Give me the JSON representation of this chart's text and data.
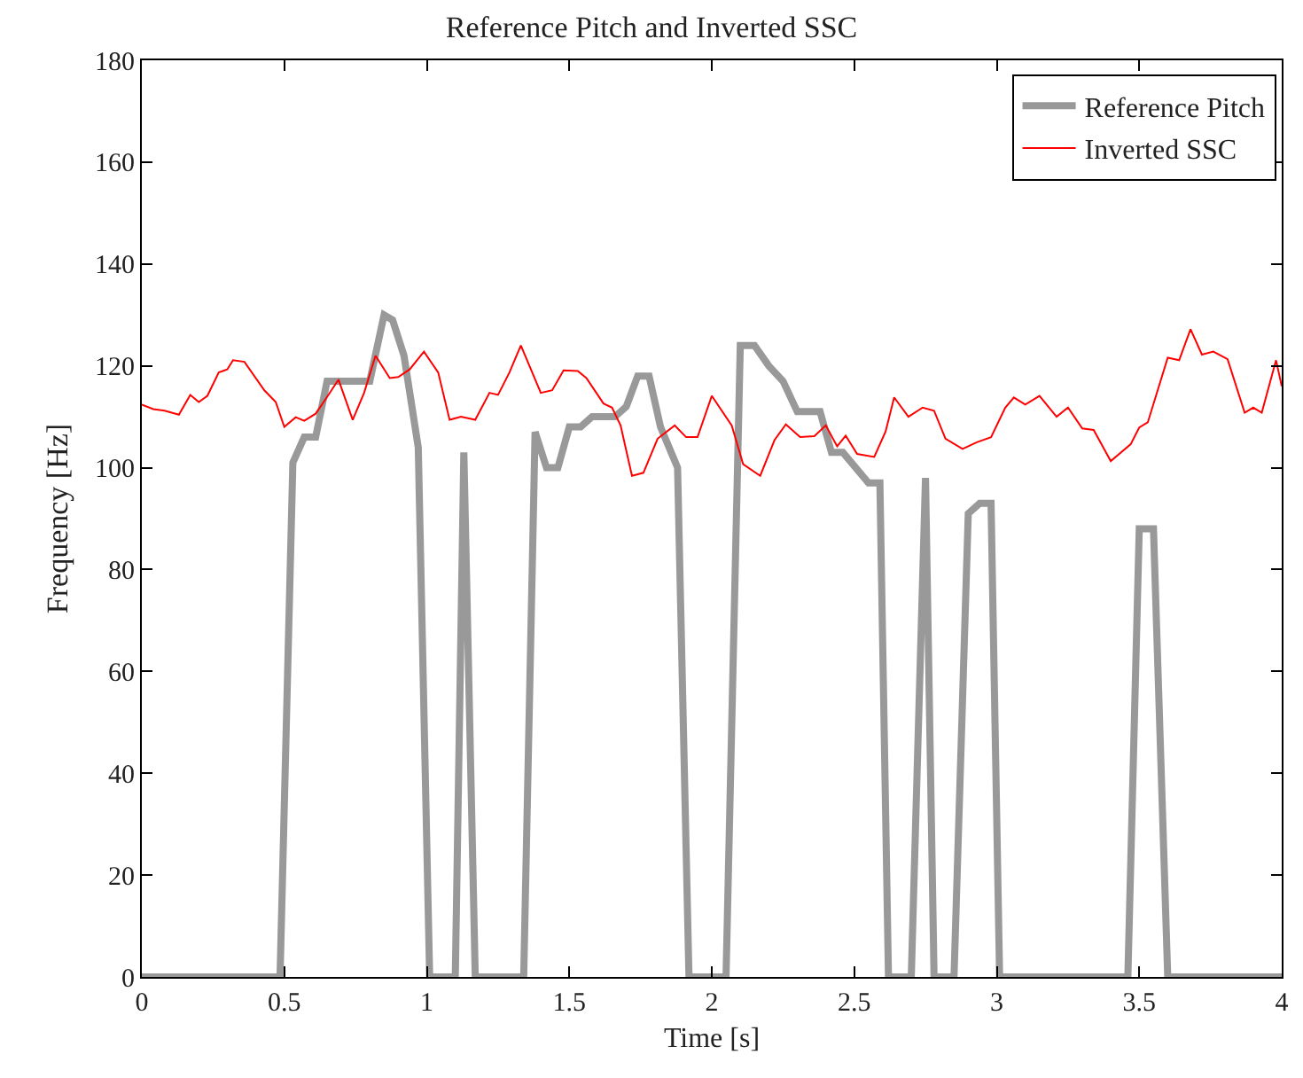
{
  "chart_data": {
    "type": "line",
    "title": "Reference Pitch and Inverted SSC",
    "xlabel": "Time [s]",
    "ylabel": "Frequency [Hz]",
    "xlim": [
      0,
      4
    ],
    "xticks": [
      0,
      0.5,
      1,
      1.5,
      2,
      2.5,
      3,
      3.5,
      4
    ],
    "ylim": [
      0,
      180
    ],
    "yticks": [
      0,
      20,
      40,
      60,
      80,
      100,
      120,
      140,
      160,
      180
    ],
    "grid": false,
    "legend": "top right",
    "marker": "none",
    "line_style": "solid",
    "series": [
      {
        "name": "Reference Pitch",
        "color": "#999999",
        "x": [
          0,
          0.485,
          0.53,
          0.57,
          0.61,
          0.65,
          0.8,
          0.85,
          0.88,
          0.92,
          0.97,
          1.01,
          1.1,
          1.13,
          1.17,
          1.34,
          1.38,
          1.42,
          1.46,
          1.5,
          1.54,
          1.58,
          1.66,
          1.7,
          1.74,
          1.78,
          1.82,
          1.88,
          1.92,
          2.05,
          2.1,
          2.15,
          2.2,
          2.25,
          2.3,
          2.38,
          2.42,
          2.46,
          2.55,
          2.59,
          2.62,
          2.7,
          2.75,
          2.78,
          2.85,
          2.9,
          2.94,
          2.98,
          3.01,
          3.46,
          3.5,
          3.55,
          3.6,
          4
        ],
        "values": [
          0,
          0,
          101,
          106,
          106,
          117,
          117,
          130,
          129,
          122,
          104,
          0,
          0,
          103,
          0,
          0,
          107,
          100,
          100,
          108,
          108,
          110,
          110,
          112,
          118,
          118,
          108,
          100,
          0,
          0,
          124,
          124,
          120,
          117,
          111,
          111,
          103,
          103,
          97,
          97,
          0,
          0,
          98,
          0,
          0,
          91,
          93,
          93,
          0,
          0,
          88,
          88,
          0,
          0
        ]
      },
      {
        "name": "Inverted SSC",
        "color": "#ff0000",
        "x": [
          0,
          0.04,
          0.08,
          0.13,
          0.17,
          0.2,
          0.23,
          0.27,
          0.3,
          0.32,
          0.36,
          0.43,
          0.47,
          0.5,
          0.54,
          0.57,
          0.61,
          0.65,
          0.69,
          0.74,
          0.78,
          0.82,
          0.87,
          0.9,
          0.94,
          0.99,
          1.04,
          1.08,
          1.12,
          1.17,
          1.22,
          1.25,
          1.29,
          1.33,
          1.4,
          1.44,
          1.48,
          1.53,
          1.56,
          1.62,
          1.65,
          1.68,
          1.72,
          1.76,
          1.81,
          1.87,
          1.91,
          1.95,
          2,
          2.07,
          2.11,
          2.17,
          2.22,
          2.26,
          2.31,
          2.36,
          2.4,
          2.44,
          2.47,
          2.51,
          2.57,
          2.61,
          2.64,
          2.69,
          2.74,
          2.78,
          2.82,
          2.88,
          2.93,
          2.98,
          3.03,
          3.06,
          3.1,
          3.15,
          3.21,
          3.25,
          3.3,
          3.34,
          3.4,
          3.47,
          3.5,
          3.53,
          3.6,
          3.64,
          3.68,
          3.72,
          3.76,
          3.81,
          3.87,
          3.9,
          3.93,
          3.98,
          4
        ],
        "values": [
          112.4,
          111.5,
          111.2,
          110.4,
          114.3,
          112.9,
          114.1,
          118.7,
          119.3,
          121.1,
          120.8,
          115.2,
          112.9,
          108,
          109.9,
          109.2,
          110.6,
          113.9,
          117.3,
          109.4,
          114.7,
          122,
          117.6,
          117.8,
          119.3,
          122.8,
          118.7,
          109.4,
          110,
          109.4,
          114.7,
          114.3,
          118.7,
          124,
          114.7,
          115.2,
          119.1,
          119,
          117.6,
          112.6,
          111.8,
          108.3,
          98.4,
          99,
          105.7,
          108.3,
          106,
          106,
          114.1,
          108.3,
          100.7,
          98.4,
          105.4,
          108.5,
          106,
          106.2,
          108.3,
          104.2,
          106.3,
          102.7,
          102.1,
          107.1,
          113.8,
          110,
          111.8,
          111.2,
          105.7,
          103.7,
          105,
          106,
          111.8,
          113.8,
          112.4,
          114.1,
          110,
          111.8,
          107.7,
          107.4,
          101.3,
          104.6,
          107.9,
          108.9,
          121.6,
          121.1,
          127.2,
          122.2,
          122.8,
          121.3,
          110.8,
          111.8,
          110.8,
          121.1,
          116
        ]
      }
    ]
  }
}
